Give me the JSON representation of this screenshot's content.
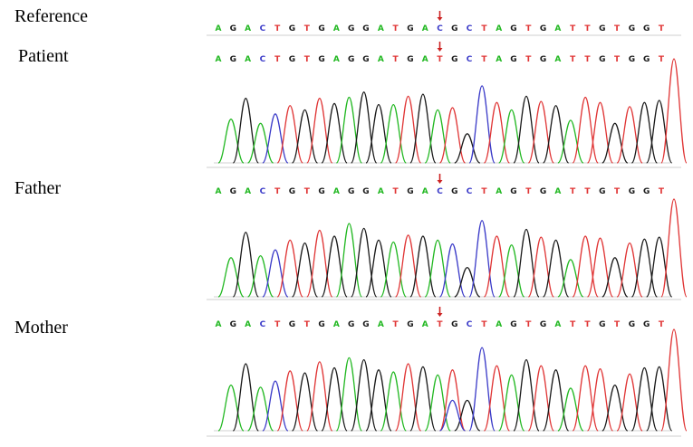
{
  "labels": {
    "reference": "Reference",
    "patient": "Patient",
    "father": "Father",
    "mother": "Mother"
  },
  "colors": {
    "A": "#22b822",
    "G": "#1a1a1a",
    "C": "#3a3ac8",
    "T": "#e03535",
    "arrow": "#cc2222",
    "baseline": "#cfcfcf"
  },
  "tracks": [
    {
      "id": "reference",
      "sequence": "AGACTGTGAGGATGACGCTAGTGATTGTGGT",
      "marker_index": 15,
      "marker_display": "C",
      "has_trace": false
    },
    {
      "id": "patient",
      "sequence": "AGACTGTGAGGATGATGCTAGTGATTGTGGT",
      "marker_index": 15,
      "marker_display": "T",
      "has_trace": true,
      "peaks": [
        0.42,
        0.62,
        0.38,
        0.47,
        0.55,
        0.51,
        0.62,
        0.57,
        0.63,
        0.68,
        0.56,
        0.56,
        0.64,
        0.66,
        0.51,
        0.53,
        0.28,
        0.74,
        0.58,
        0.51,
        0.64,
        0.59,
        0.55,
        0.41,
        0.63,
        0.58,
        0.38,
        0.54,
        0.58,
        0.6,
        1.0
      ]
    },
    {
      "id": "father",
      "sequence": "AGACTGTGAGGATGACGCTAGTGATTGTGGT",
      "marker_index": 15,
      "marker_display": "C",
      "has_trace": true,
      "peaks": [
        0.4,
        0.66,
        0.42,
        0.48,
        0.58,
        0.55,
        0.68,
        0.62,
        0.75,
        0.7,
        0.58,
        0.56,
        0.63,
        0.62,
        0.58,
        0.54,
        0.3,
        0.78,
        0.62,
        0.53,
        0.69,
        0.61,
        0.58,
        0.38,
        0.62,
        0.6,
        0.4,
        0.55,
        0.59,
        0.61,
        1.0
      ]
    },
    {
      "id": "mother",
      "sequence": "AGACTGTGAGGATGATGCTAGTGATTGTGGT",
      "marker_index": 15,
      "marker_display": "T",
      "has_trace": true,
      "peaks": [
        0.45,
        0.66,
        0.43,
        0.49,
        0.59,
        0.57,
        0.68,
        0.62,
        0.72,
        0.7,
        0.6,
        0.58,
        0.66,
        0.63,
        0.55,
        0.6,
        0.3,
        0.82,
        0.64,
        0.55,
        0.7,
        0.64,
        0.6,
        0.42,
        0.64,
        0.61,
        0.45,
        0.56,
        0.62,
        0.63,
        1.0
      ],
      "extra_peaks": [
        {
          "index": 15,
          "base": "C",
          "height": 0.3
        }
      ]
    }
  ]
}
